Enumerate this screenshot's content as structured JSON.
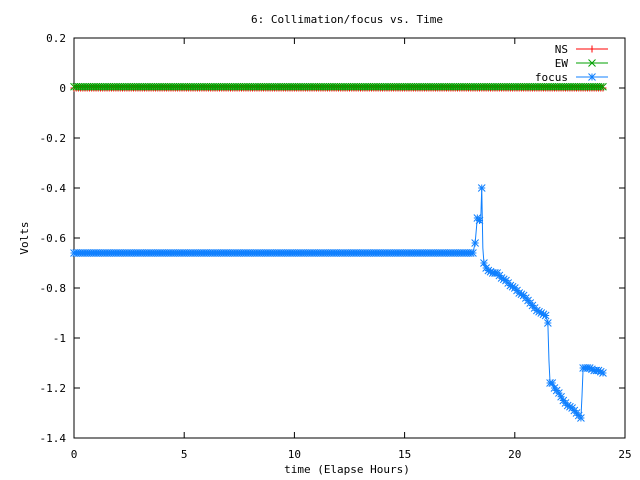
{
  "chart_data": {
    "type": "line",
    "title": "6: Collimation/focus vs. Time",
    "xlabel": "time (Elapse Hours)",
    "ylabel": "Volts",
    "xlim": [
      0,
      25
    ],
    "ylim": [
      -1.4,
      0.2
    ],
    "xticks": [
      0,
      5,
      10,
      15,
      20,
      25
    ],
    "xtick_labels": [
      "0",
      "5",
      "10",
      "15",
      "20",
      "25"
    ],
    "yticks": [
      0.2,
      0,
      -0.2,
      -0.4,
      -0.6,
      -0.8,
      -1,
      -1.2,
      -1.4
    ],
    "ytick_labels": [
      "0.2",
      "0",
      "-0.2",
      "-0.4",
      "-0.6",
      "-0.8",
      "-1",
      "-1.2",
      "-1.4"
    ],
    "grid": false,
    "legend_position": "top-right",
    "series": [
      {
        "name": "NS",
        "color": "#ff0000",
        "marker": "plus",
        "x": [
          0,
          24
        ],
        "y": [
          0,
          0
        ],
        "sampling_interval_hours": 0.1
      },
      {
        "name": "EW",
        "color": "#00a000",
        "marker": "cross",
        "x": [
          0,
          24
        ],
        "y": [
          0.005,
          0.005
        ],
        "sampling_interval_hours": 0.1
      },
      {
        "name": "focus",
        "color": "#1080ff",
        "marker": "star",
        "sampling_interval_hours": 0.1,
        "x": [
          0,
          18.1,
          18.2,
          18.3,
          18.4,
          18.45,
          18.5,
          18.55,
          18.6,
          18.7,
          18.8,
          19.0,
          19.2,
          19.4,
          19.6,
          19.8,
          20.0,
          20.2,
          20.4,
          20.6,
          20.8,
          21.0,
          21.2,
          21.4,
          21.5,
          21.55,
          21.6,
          21.7,
          21.8,
          22.0,
          22.2,
          22.4,
          22.6,
          22.8,
          23.0,
          23.05,
          23.1,
          23.2,
          23.4,
          23.6,
          23.8,
          24.0
        ],
        "y": [
          -0.66,
          -0.66,
          -0.62,
          -0.52,
          -0.53,
          -0.54,
          -0.4,
          -0.64,
          -0.7,
          -0.72,
          -0.73,
          -0.74,
          -0.74,
          -0.76,
          -0.77,
          -0.79,
          -0.8,
          -0.82,
          -0.83,
          -0.85,
          -0.87,
          -0.89,
          -0.9,
          -0.91,
          -0.94,
          -1.09,
          -1.18,
          -1.18,
          -1.2,
          -1.22,
          -1.25,
          -1.27,
          -1.28,
          -1.3,
          -1.32,
          -1.23,
          -1.12,
          -1.12,
          -1.12,
          -1.13,
          -1.13,
          -1.14
        ]
      }
    ]
  }
}
